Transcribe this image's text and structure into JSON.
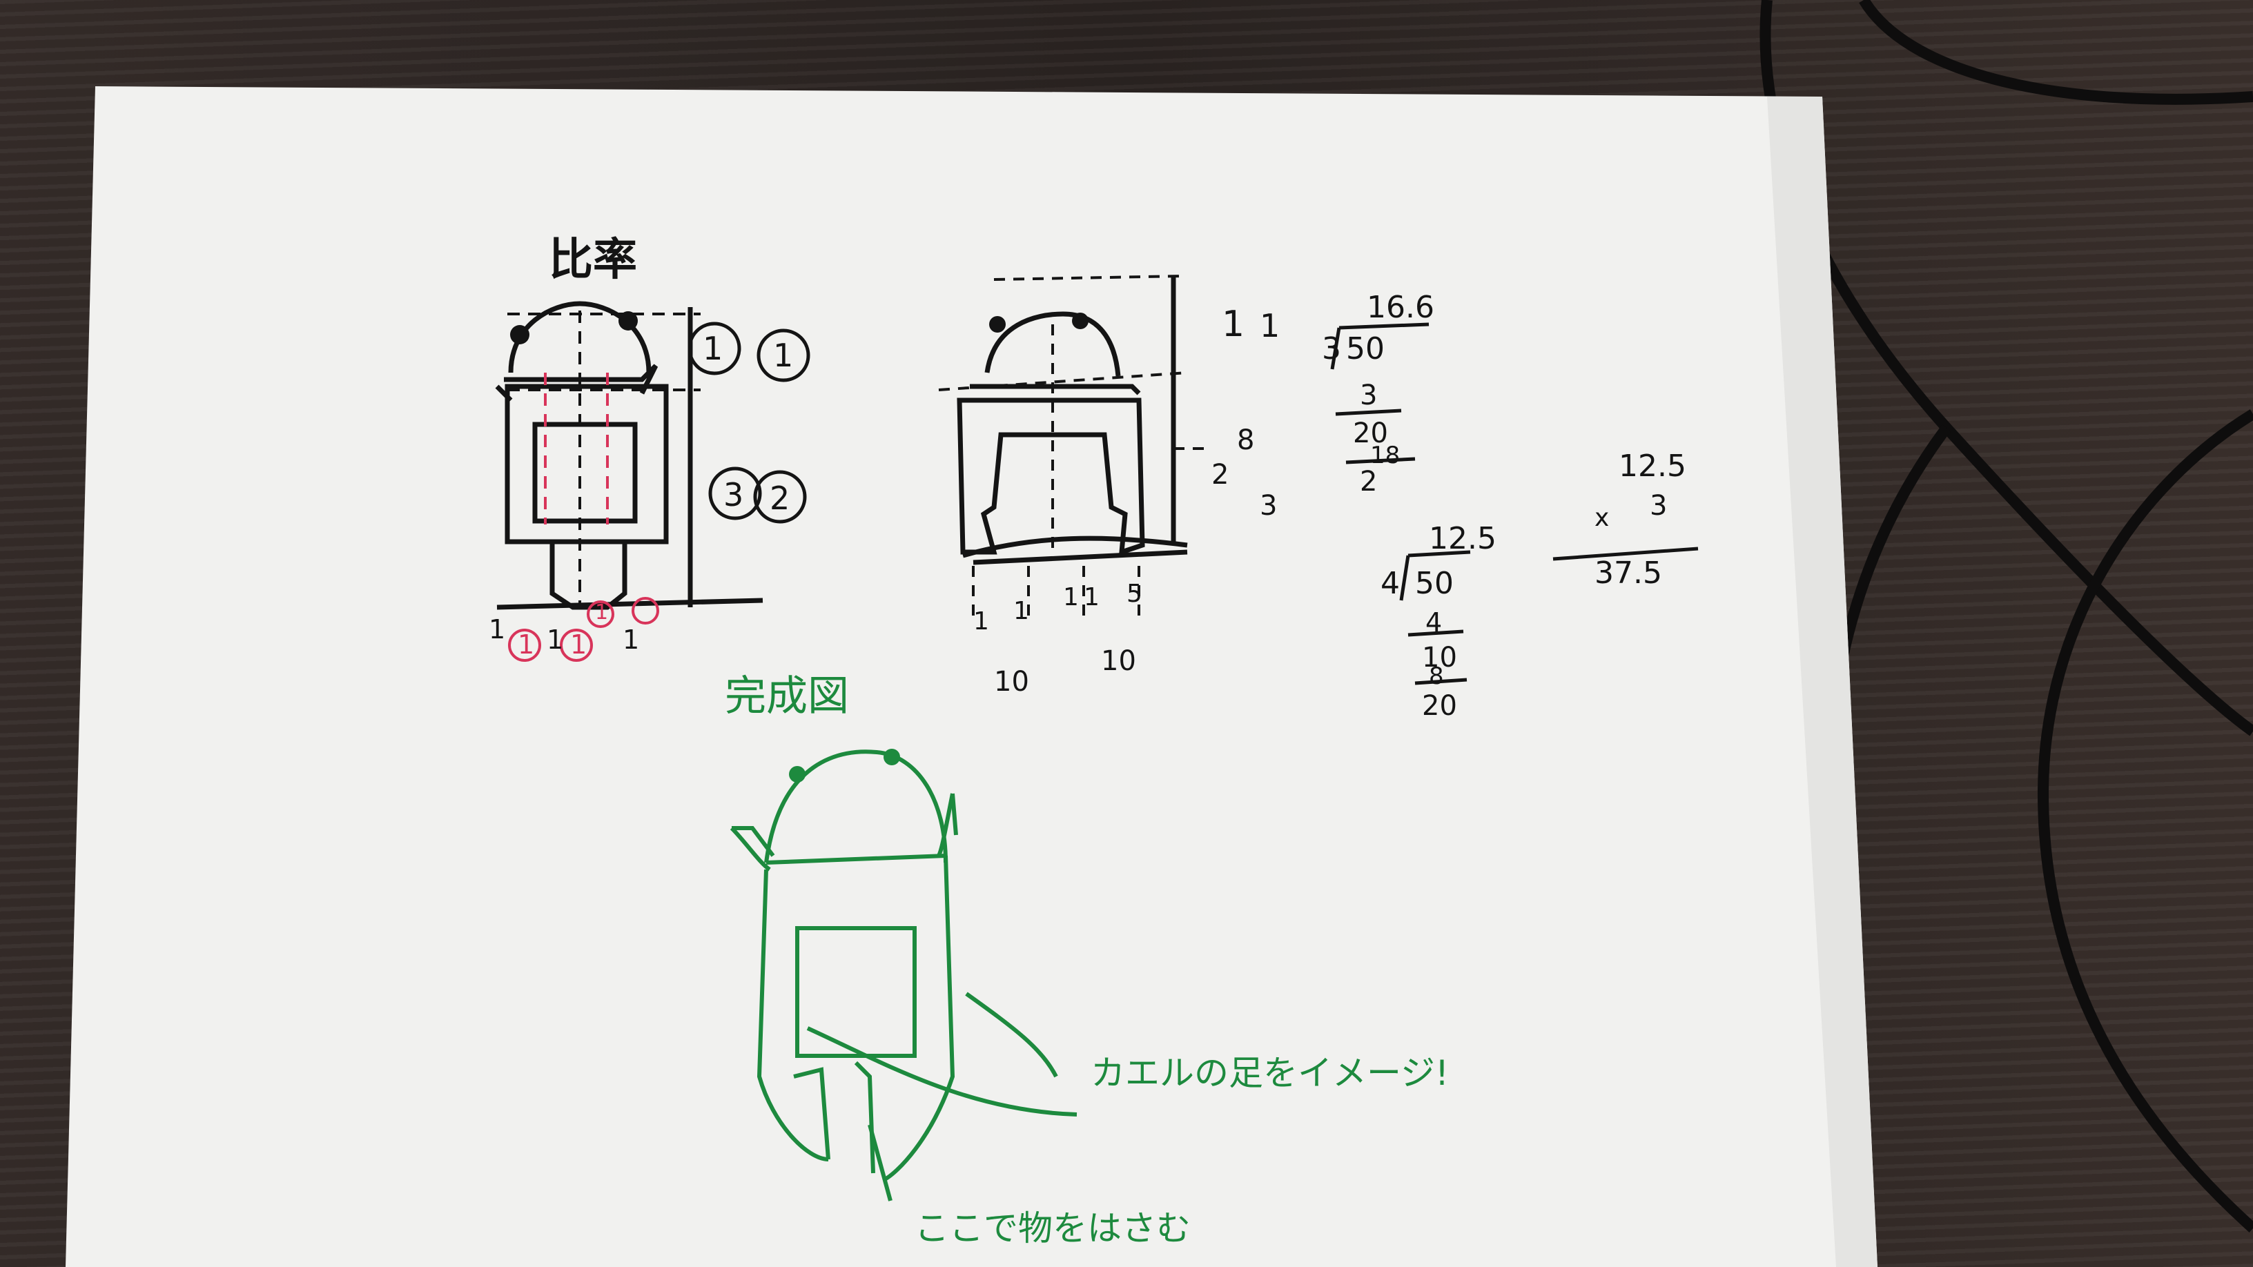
{
  "sketch": {
    "ratio_title": "比率",
    "ratio_labels_right": [
      "1",
      "1",
      "3",
      "2"
    ],
    "ratio_labels_bottom": [
      "1",
      "1",
      "1",
      "1",
      "1",
      "1"
    ],
    "mid_left_numbers": [
      "2",
      "8",
      "3"
    ],
    "mid_right_numbers": [
      "1",
      "1"
    ],
    "mid_bottom_numbers": [
      "1",
      "1",
      "1",
      "1",
      "5"
    ],
    "mid_width_labels": [
      "10",
      "10"
    ],
    "division_1": {
      "quotient": "16.6",
      "divisor": "3",
      "dividend": "50",
      "step1": "3",
      "step2": "20",
      "step3": "18",
      "step4": "2"
    },
    "division_2": {
      "quotient": "12.5",
      "divisor": "4",
      "dividend": "50",
      "step1": "4",
      "step2": "10",
      "step3": "8",
      "step4": "20"
    },
    "multiplication": {
      "a": "12.5",
      "op": "x",
      "b": "3",
      "result": "37.5"
    },
    "completed_title": "完成図",
    "annotation_legs": "カエルの足をイメージ!",
    "annotation_clip": "ここで物をはさむ"
  },
  "colors": {
    "ink": "#141414",
    "green_ink": "#1d8a3e",
    "red_ink": "#d8345a",
    "paper": "#f2f2f0"
  }
}
